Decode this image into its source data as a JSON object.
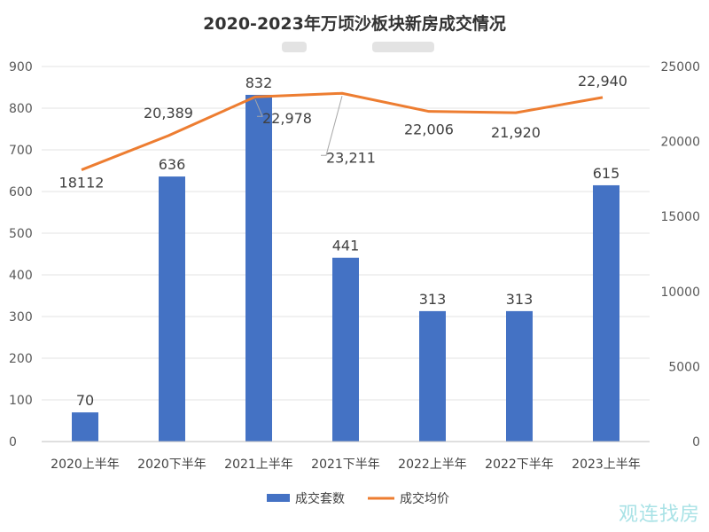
{
  "chart_data": {
    "type": "bar",
    "title": "2020-2023年万顷沙板块新房成交情况",
    "categories": [
      "2020上半年",
      "2020下半年",
      "2021上半年",
      "2021下半年",
      "2022上半年",
      "2022下半年",
      "2023上半年"
    ],
    "series": [
      {
        "name": "成交套数",
        "type": "bar",
        "axis": "left",
        "color": "#4472c4",
        "values": [
          70,
          636,
          832,
          441,
          313,
          313,
          615
        ],
        "labels": [
          "70",
          "636",
          "832",
          "441",
          "313",
          "313",
          "615"
        ]
      },
      {
        "name": "成交均价",
        "type": "line",
        "axis": "right",
        "color": "#ed7d31",
        "values": [
          18112,
          20389,
          22978,
          23211,
          22006,
          21920,
          22940
        ],
        "labels": [
          "18112",
          "20,389",
          "22,978",
          "23,211",
          "22,006",
          "21,920",
          "22,940"
        ]
      }
    ],
    "y_left": {
      "min": 0,
      "max": 900,
      "ticks": [
        0,
        100,
        200,
        300,
        400,
        500,
        600,
        700,
        800,
        900
      ]
    },
    "y_right": {
      "min": 0,
      "max": 25000,
      "ticks": [
        0,
        5000,
        10000,
        15000,
        20000,
        25000
      ]
    },
    "grid": true,
    "legend": "bottom"
  },
  "watermark": "观连找房"
}
